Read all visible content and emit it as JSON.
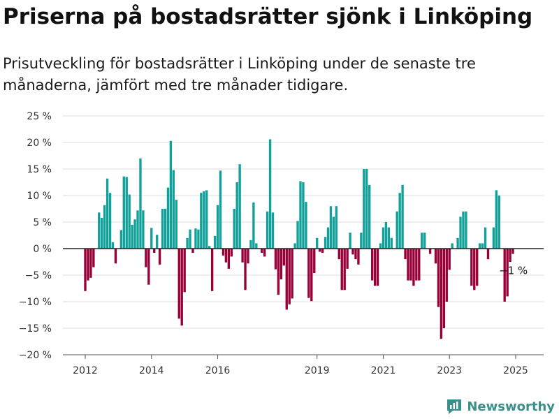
{
  "title": "Priserna på bostadsrätter sjönk i Linköping",
  "subtitle": "Prisutveckling för bostadsrätter i Linköping under de senaste tre månaderna, jämfört med tre månader tidigare.",
  "brand": {
    "name": "Newsworthy",
    "icon": "newsworthy-logo-icon"
  },
  "chart_data": {
    "type": "bar",
    "ylim": [
      -20,
      25
    ],
    "y_ticks": [
      25,
      20,
      15,
      10,
      5,
      0,
      -5,
      -10,
      -15,
      -20
    ],
    "y_tick_labels": [
      "25 %",
      "20 %",
      "15 %",
      "10 %",
      "5 %",
      "0 %",
      "−5 %",
      "−10 %",
      "−15 %",
      "−20 %"
    ],
    "x_ticks": [
      2012,
      2014,
      2016,
      2019,
      2021,
      2023,
      2025
    ],
    "x_tick_labels": [
      "2012",
      "2014",
      "2016",
      "2019",
      "2021",
      "2023",
      "2025"
    ],
    "grid": true,
    "colors": {
      "positive": "#12a19a",
      "negative": "#980038"
    },
    "start_month": "2012-01",
    "values": [
      -8,
      -6,
      -5.5,
      -3.5,
      0,
      6.8,
      5.8,
      8.2,
      13.2,
      10.5,
      1.2,
      -2.8,
      0,
      3.5,
      13.6,
      13.5,
      10.2,
      4.5,
      5.5,
      7.2,
      17,
      7.2,
      -3.5,
      -6.8,
      3.9,
      -0.8,
      2.6,
      -3,
      7.5,
      7.5,
      11.5,
      20.3,
      14.8,
      9.2,
      -13.2,
      -14.5,
      -8.2,
      2,
      3.6,
      -0.8,
      3.8,
      3.6,
      10.5,
      10.8,
      11,
      0.5,
      -8,
      2.4,
      8.2,
      14.7,
      -1.3,
      -2.6,
      -3.8,
      -1.5,
      7.5,
      12.5,
      15.9,
      -2.6,
      -7.8,
      -2.8,
      1.6,
      8.7,
      1,
      0,
      -0.8,
      -1.5,
      7,
      20.6,
      6.8,
      -3.9,
      -8.7,
      -5.8,
      -3.2,
      -11.5,
      -10.5,
      -9.4,
      1,
      5.2,
      12.7,
      12.5,
      8.8,
      -9.3,
      -9.9,
      -4.6,
      2,
      -0.6,
      -0.8,
      2.2,
      4,
      8,
      6,
      8,
      -2,
      -7.8,
      -7.8,
      -3.8,
      3,
      -1.1,
      -2,
      -3,
      3,
      15,
      15,
      12,
      -6,
      -7,
      -7,
      1,
      4,
      5,
      4,
      2,
      0,
      7,
      10.5,
      12,
      -2,
      -6,
      -6,
      -7,
      -6,
      -6,
      3,
      3,
      0,
      -1,
      0,
      -2.8,
      -11,
      -17,
      -15,
      -10,
      -4,
      1,
      0,
      2,
      6,
      7,
      7,
      0,
      -7,
      -7.8,
      -7,
      1,
      1,
      4,
      -2,
      0,
      4,
      11,
      10,
      0,
      -10,
      -9,
      -2.5,
      -1
    ],
    "annotation": "−1 %"
  }
}
